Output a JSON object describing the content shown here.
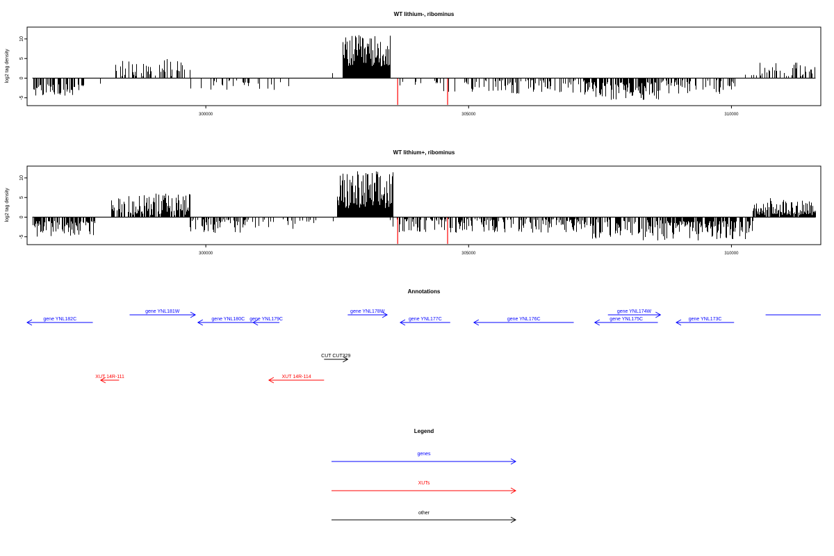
{
  "colors": {
    "foreground": "#000000",
    "gene": "#0000ff",
    "xut": "#ff0000",
    "other": "#000000",
    "highlight": "#ff0000"
  },
  "chart_data": [
    {
      "type": "bar",
      "title": "WT lithium-, ribominus",
      "ylabel": "log2 tag density",
      "xlim": [
        296600,
        311700
      ],
      "ylim": [
        -7,
        13
      ],
      "xticks": [
        300000,
        305000,
        310000
      ],
      "yticks": [
        10,
        5,
        0,
        -5
      ],
      "grid": false,
      "segments": [
        {
          "from": 296700,
          "to": 297700,
          "sign": -1,
          "min": 1.5,
          "max": 4.5,
          "density": 0.55
        },
        {
          "from": 297700,
          "to": 298200,
          "sign": -1,
          "min": 0.5,
          "max": 2.0,
          "density": 0.08
        },
        {
          "from": 298200,
          "to": 299700,
          "sign": 1,
          "min": 0.5,
          "max": 5.0,
          "density": 0.3
        },
        {
          "from": 299700,
          "to": 300700,
          "sign": -1,
          "min": 0.5,
          "max": 3.0,
          "density": 0.12
        },
        {
          "from": 300700,
          "to": 301700,
          "sign": -1,
          "min": 1.0,
          "max": 3.5,
          "density": 0.15
        },
        {
          "from": 301700,
          "to": 302600,
          "sign": 1,
          "min": 0.5,
          "max": 2.5,
          "density": 0.05
        },
        {
          "from": 302600,
          "to": 303500,
          "sign": 1,
          "min": 3.0,
          "max": 11.0,
          "density": 1.0
        },
        {
          "from": 303500,
          "to": 304300,
          "sign": -1,
          "min": 0.5,
          "max": 2.5,
          "density": 0.1
        },
        {
          "from": 304300,
          "to": 305700,
          "sign": -1,
          "min": 0.5,
          "max": 3.5,
          "density": 0.25
        },
        {
          "from": 305700,
          "to": 307200,
          "sign": -1,
          "min": 0.5,
          "max": 4.0,
          "density": 0.35
        },
        {
          "from": 307200,
          "to": 308600,
          "sign": -1,
          "min": 1.0,
          "max": 5.5,
          "density": 0.75
        },
        {
          "from": 308600,
          "to": 310100,
          "sign": -1,
          "min": 0.5,
          "max": 4.0,
          "density": 0.4
        },
        {
          "from": 310100,
          "to": 310500,
          "sign": 1,
          "min": 0.5,
          "max": 2.0,
          "density": 0.08
        },
        {
          "from": 310500,
          "to": 311600,
          "sign": 1,
          "min": 0.5,
          "max": 4.0,
          "density": 0.35
        }
      ],
      "highlights": [
        {
          "x": 303650,
          "y": -6.8
        },
        {
          "x": 304600,
          "y": -6.8
        }
      ]
    },
    {
      "type": "bar",
      "title": "WT lithium+, ribominus",
      "ylabel": "log2 tag density",
      "xlim": [
        296600,
        311700
      ],
      "ylim": [
        -7,
        13
      ],
      "xticks": [
        300000,
        305000,
        310000
      ],
      "yticks": [
        10,
        5,
        0,
        -5
      ],
      "grid": false,
      "segments": [
        {
          "from": 296700,
          "to": 297900,
          "sign": -1,
          "min": 1.0,
          "max": 5.0,
          "density": 0.7
        },
        {
          "from": 298200,
          "to": 299700,
          "sign": 1,
          "min": 0.5,
          "max": 6.0,
          "density": 0.75
        },
        {
          "from": 299700,
          "to": 300700,
          "sign": -1,
          "min": 0.5,
          "max": 4.0,
          "density": 0.45
        },
        {
          "from": 300700,
          "to": 301700,
          "sign": -1,
          "min": 0.5,
          "max": 3.5,
          "density": 0.3
        },
        {
          "from": 301700,
          "to": 302500,
          "sign": -1,
          "min": 0.5,
          "max": 2.5,
          "density": 0.1
        },
        {
          "from": 302500,
          "to": 303550,
          "sign": 1,
          "min": 2.0,
          "max": 12.0,
          "density": 1.0
        },
        {
          "from": 303500,
          "to": 305500,
          "sign": -1,
          "min": 0.5,
          "max": 4.0,
          "density": 0.5
        },
        {
          "from": 305500,
          "to": 307200,
          "sign": -1,
          "min": 0.5,
          "max": 4.0,
          "density": 0.55
        },
        {
          "from": 307200,
          "to": 308800,
          "sign": -1,
          "min": 0.5,
          "max": 6.0,
          "density": 0.6
        },
        {
          "from": 308800,
          "to": 310400,
          "sign": -1,
          "min": 1.0,
          "max": 6.0,
          "density": 0.8
        },
        {
          "from": 310400,
          "to": 311600,
          "sign": 1,
          "min": 0.5,
          "max": 5.0,
          "density": 0.9
        }
      ],
      "highlights": [
        {
          "x": 303650,
          "y": -6.8
        },
        {
          "x": 304600,
          "y": -6.8
        }
      ]
    }
  ],
  "annotations": {
    "title": "Annotations",
    "features": [
      {
        "label": "gene YNL182C",
        "kind": "gene",
        "start": 296300,
        "end": 297850,
        "strand": -1,
        "track": 1
      },
      {
        "label": "gene YNL181W",
        "kind": "gene",
        "start": 298550,
        "end": 299800,
        "strand": 1,
        "track": 0
      },
      {
        "label": "gene YNL180C",
        "kind": "gene",
        "start": 299850,
        "end": 301000,
        "strand": -1,
        "track": 1
      },
      {
        "label": "gene YNL179C",
        "kind": "gene",
        "start": 300900,
        "end": 301400,
        "strand": -1,
        "track": 1
      },
      {
        "label": "gene YNL178W",
        "kind": "gene",
        "start": 302700,
        "end": 303450,
        "strand": 1,
        "track": 0
      },
      {
        "label": "gene YNL177C",
        "kind": "gene",
        "start": 303700,
        "end": 304650,
        "strand": -1,
        "track": 1
      },
      {
        "label": "gene YNL176C",
        "kind": "gene",
        "start": 305100,
        "end": 307000,
        "strand": -1,
        "track": 1
      },
      {
        "label": "gene YNL175C",
        "kind": "gene",
        "start": 307400,
        "end": 308600,
        "strand": -1,
        "track": 1
      },
      {
        "label": "gene YNL174W",
        "kind": "gene",
        "start": 307650,
        "end": 308650,
        "strand": 1,
        "track": 0
      },
      {
        "label": "gene YNL173C",
        "kind": "gene",
        "start": 308950,
        "end": 310050,
        "strand": -1,
        "track": 1
      },
      {
        "label": "",
        "kind": "gene",
        "start": 310650,
        "end": 312300,
        "strand": -1,
        "track": 0
      },
      {
        "label": "CUT CUT329",
        "kind": "other",
        "start": 302250,
        "end": 302700,
        "strand": 1,
        "track": 2
      },
      {
        "label": "XUT 14R-111",
        "kind": "xut",
        "start": 298000,
        "end": 298350,
        "strand": -1,
        "track": 3
      },
      {
        "label": "XUT 14R-114",
        "kind": "xut",
        "start": 301200,
        "end": 302250,
        "strand": -1,
        "track": 3
      }
    ]
  },
  "legend": {
    "title": "Legend",
    "items": [
      {
        "label": "genes",
        "kind": "gene"
      },
      {
        "label": "XUTs",
        "kind": "xut"
      },
      {
        "label": "other",
        "kind": "other"
      }
    ]
  }
}
